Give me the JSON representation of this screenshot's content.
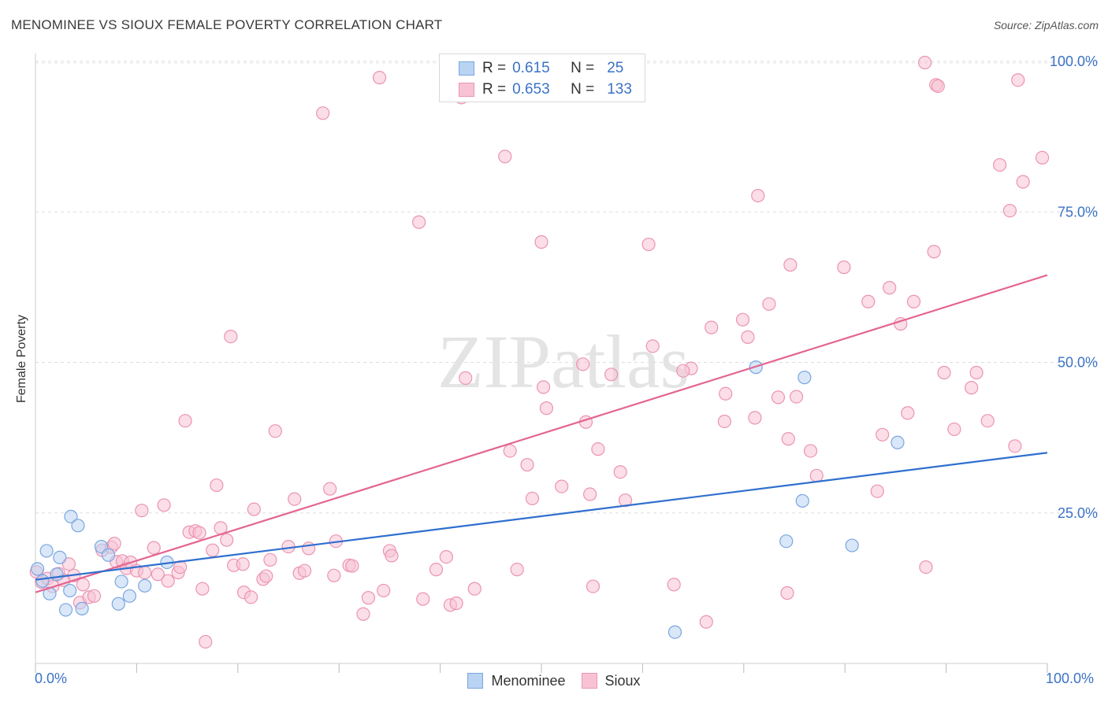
{
  "title": "MENOMINEE VS SIOUX FEMALE POVERTY CORRELATION CHART",
  "source": "Source: ZipAtlas.com",
  "watermark": "ZIPatlas",
  "legend": {
    "r_label": "R =",
    "n_label": "N =",
    "entries": [
      {
        "name": "Menominee",
        "r": "0.615",
        "n": "25"
      },
      {
        "name": "Sioux",
        "r": "0.653",
        "n": "133"
      }
    ]
  },
  "colors": {
    "menominee_fill": "#b9d3f3",
    "menominee_stroke": "#7aa6e0",
    "menominee_line": "#2f6fd0",
    "sioux_fill": "#f7c3d4",
    "sioux_stroke": "#eb94b1",
    "sioux_line": "#e36592",
    "tick_text": "#3b73c6"
  },
  "chart_data": {
    "type": "scatter",
    "title": "MENOMINEE VS SIOUX FEMALE POVERTY CORRELATION CHART",
    "xlabel": "",
    "ylabel": "Female Poverty",
    "xlim": [
      0,
      100
    ],
    "ylim": [
      0,
      100
    ],
    "x_tick_labels": [
      "0.0%",
      "100.0%"
    ],
    "y_ticks": [
      25,
      50,
      75,
      100
    ],
    "y_tick_labels": [
      "25.0%",
      "50.0%",
      "75.0%",
      "100.0%"
    ],
    "grid": true,
    "legend_position": "top-center",
    "series": [
      {
        "name": "Menominee",
        "r": 0.615,
        "n": 25,
        "trend": {
          "x": [
            0,
            100
          ],
          "y": [
            13.9,
            35.0
          ]
        },
        "points": [
          [
            0.2,
            15.7
          ],
          [
            0.7,
            13.7
          ],
          [
            1.1,
            18.7
          ],
          [
            1.4,
            11.6
          ],
          [
            2.1,
            14.8
          ],
          [
            2.4,
            17.6
          ],
          [
            3.0,
            8.9
          ],
          [
            3.4,
            12.1
          ],
          [
            3.5,
            24.4
          ],
          [
            4.2,
            22.9
          ],
          [
            4.6,
            9.1
          ],
          [
            6.5,
            19.4
          ],
          [
            7.2,
            18.0
          ],
          [
            8.2,
            9.9
          ],
          [
            8.5,
            13.6
          ],
          [
            9.3,
            11.2
          ],
          [
            10.8,
            12.9
          ],
          [
            13.0,
            16.8
          ],
          [
            63.2,
            5.2
          ],
          [
            71.2,
            49.2
          ],
          [
            75.8,
            27.0
          ],
          [
            74.2,
            20.3
          ],
          [
            76.0,
            47.5
          ],
          [
            80.7,
            19.6
          ],
          [
            85.2,
            36.7
          ]
        ]
      },
      {
        "name": "Sioux",
        "r": 0.653,
        "n": 133,
        "trend": {
          "x": [
            0,
            100
          ],
          "y": [
            11.8,
            64.5
          ]
        },
        "points": [
          [
            0.1,
            15.2
          ],
          [
            0.6,
            13.5
          ],
          [
            1.2,
            14.1
          ],
          [
            1.7,
            12.8
          ],
          [
            2.3,
            14.9
          ],
          [
            2.8,
            13.8
          ],
          [
            3.3,
            16.5
          ],
          [
            3.8,
            14.6
          ],
          [
            4.4,
            10.1
          ],
          [
            4.7,
            13.1
          ],
          [
            5.3,
            11.0
          ],
          [
            5.8,
            11.2
          ],
          [
            6.6,
            18.8
          ],
          [
            7.5,
            19.3
          ],
          [
            7.8,
            19.9
          ],
          [
            8.0,
            16.9
          ],
          [
            8.6,
            17.0
          ],
          [
            9.0,
            15.8
          ],
          [
            9.4,
            16.8
          ],
          [
            10.0,
            15.4
          ],
          [
            10.5,
            25.4
          ],
          [
            10.8,
            15.1
          ],
          [
            11.7,
            19.2
          ],
          [
            12.1,
            14.8
          ],
          [
            12.7,
            26.3
          ],
          [
            13.1,
            13.7
          ],
          [
            14.1,
            15.1
          ],
          [
            14.3,
            16.0
          ],
          [
            14.8,
            40.3
          ],
          [
            15.2,
            21.8
          ],
          [
            15.8,
            22.0
          ],
          [
            16.2,
            21.7
          ],
          [
            16.5,
            12.4
          ],
          [
            16.8,
            3.6
          ],
          [
            17.5,
            18.8
          ],
          [
            17.9,
            29.6
          ],
          [
            18.3,
            22.5
          ],
          [
            18.9,
            20.5
          ],
          [
            19.3,
            54.3
          ],
          [
            19.6,
            16.3
          ],
          [
            20.5,
            16.5
          ],
          [
            20.6,
            11.8
          ],
          [
            21.3,
            11.0
          ],
          [
            21.6,
            25.6
          ],
          [
            22.5,
            14.0
          ],
          [
            22.8,
            14.5
          ],
          [
            23.2,
            17.2
          ],
          [
            23.7,
            38.6
          ],
          [
            25.0,
            19.4
          ],
          [
            25.6,
            27.3
          ],
          [
            26.1,
            15.0
          ],
          [
            26.6,
            15.4
          ],
          [
            27.0,
            19.1
          ],
          [
            28.4,
            91.4
          ],
          [
            29.1,
            29.0
          ],
          [
            29.5,
            14.6
          ],
          [
            29.7,
            20.3
          ],
          [
            31.0,
            16.3
          ],
          [
            31.3,
            16.2
          ],
          [
            32.4,
            8.2
          ],
          [
            32.9,
            10.9
          ],
          [
            34.0,
            97.3
          ],
          [
            34.4,
            12.1
          ],
          [
            35.0,
            18.7
          ],
          [
            35.2,
            17.9
          ],
          [
            37.9,
            73.3
          ],
          [
            38.3,
            10.7
          ],
          [
            39.6,
            15.6
          ],
          [
            40.6,
            17.7
          ],
          [
            41.0,
            9.7
          ],
          [
            41.6,
            10.0
          ],
          [
            42.1,
            94.0
          ],
          [
            42.5,
            47.4
          ],
          [
            43.4,
            12.4
          ],
          [
            46.4,
            84.2
          ],
          [
            46.9,
            35.3
          ],
          [
            47.6,
            15.6
          ],
          [
            48.6,
            33.0
          ],
          [
            49.1,
            27.4
          ],
          [
            50.0,
            70.0
          ],
          [
            50.2,
            45.9
          ],
          [
            50.5,
            42.4
          ],
          [
            52.0,
            29.4
          ],
          [
            54.1,
            49.7
          ],
          [
            54.4,
            40.1
          ],
          [
            54.8,
            28.1
          ],
          [
            55.1,
            12.8
          ],
          [
            55.6,
            35.6
          ],
          [
            56.9,
            48.0
          ],
          [
            57.8,
            31.8
          ],
          [
            58.3,
            27.1
          ],
          [
            60.6,
            69.6
          ],
          [
            61.0,
            52.7
          ],
          [
            63.1,
            13.1
          ],
          [
            64.8,
            49.0
          ],
          [
            64.0,
            48.6
          ],
          [
            66.3,
            6.9
          ],
          [
            66.8,
            55.8
          ],
          [
            68.2,
            44.8
          ],
          [
            68.1,
            40.2
          ],
          [
            69.9,
            57.1
          ],
          [
            70.4,
            54.2
          ],
          [
            71.1,
            40.8
          ],
          [
            71.4,
            77.7
          ],
          [
            72.5,
            59.7
          ],
          [
            73.4,
            44.2
          ],
          [
            74.4,
            37.3
          ],
          [
            74.3,
            11.7
          ],
          [
            74.6,
            66.2
          ],
          [
            75.2,
            44.3
          ],
          [
            76.6,
            35.3
          ],
          [
            77.2,
            31.2
          ],
          [
            79.9,
            65.8
          ],
          [
            82.3,
            60.1
          ],
          [
            83.2,
            28.6
          ],
          [
            83.7,
            38.0
          ],
          [
            84.4,
            62.4
          ],
          [
            85.5,
            56.4
          ],
          [
            86.2,
            41.6
          ],
          [
            86.8,
            60.1
          ],
          [
            88.0,
            16.0
          ],
          [
            87.9,
            99.8
          ],
          [
            88.8,
            68.4
          ],
          [
            89.0,
            96.1
          ],
          [
            89.2,
            95.9
          ],
          [
            89.8,
            48.3
          ],
          [
            90.8,
            38.9
          ],
          [
            92.5,
            45.8
          ],
          [
            93.0,
            48.3
          ],
          [
            94.1,
            40.3
          ],
          [
            95.3,
            82.8
          ],
          [
            96.3,
            75.2
          ],
          [
            96.8,
            36.1
          ],
          [
            97.1,
            96.9
          ],
          [
            97.6,
            80.0
          ],
          [
            99.5,
            84.0
          ]
        ]
      }
    ]
  }
}
